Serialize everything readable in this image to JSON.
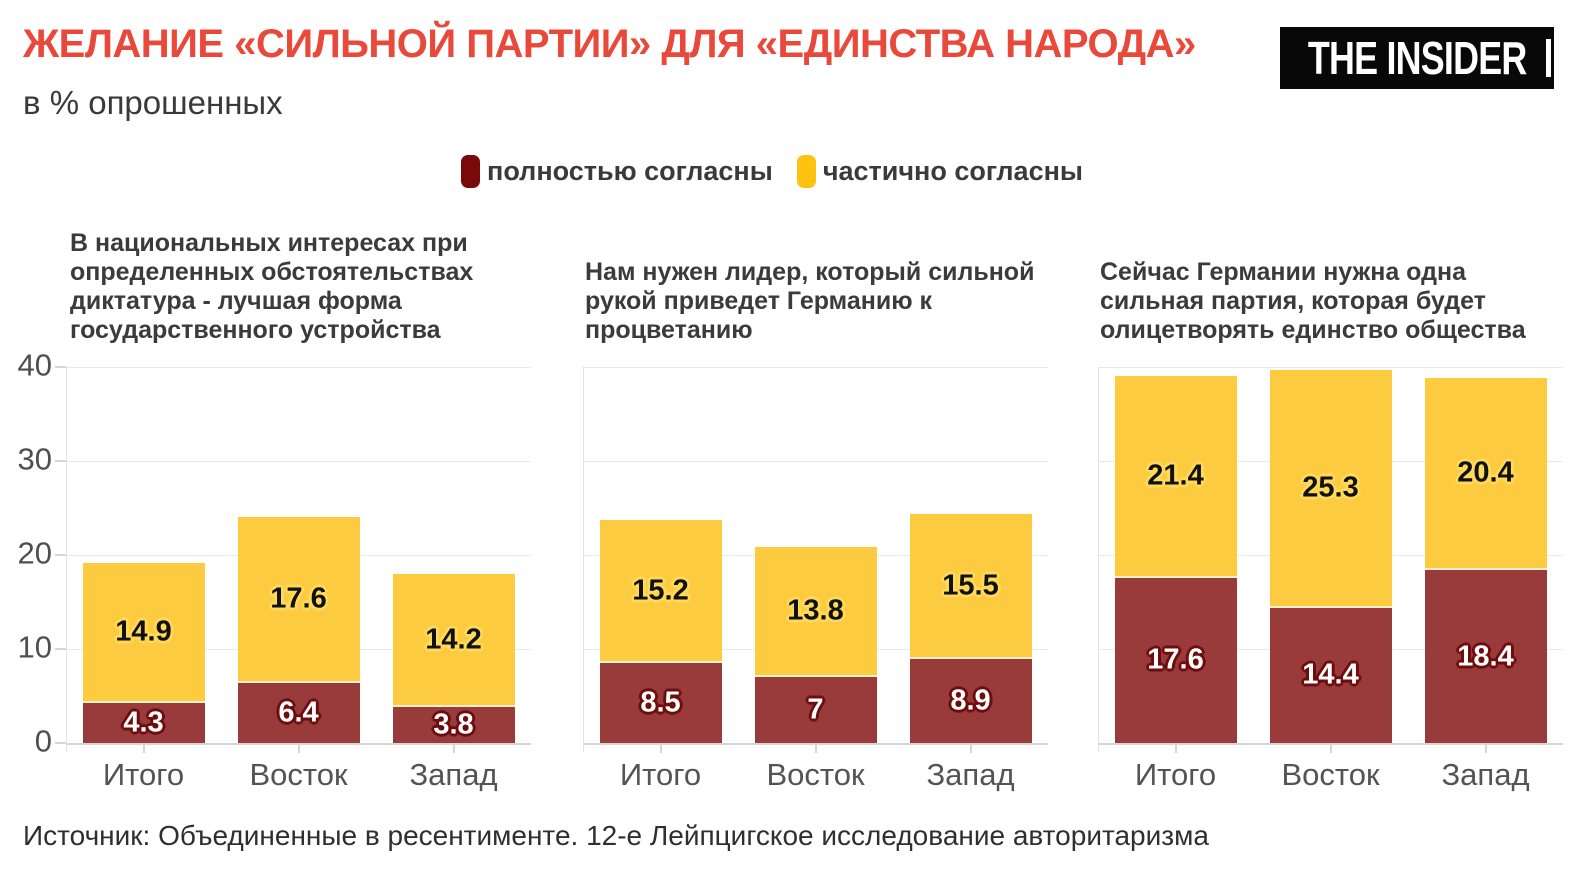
{
  "header": {
    "title": "ЖЕЛАНИЕ «СИЛЬНОЙ ПАРТИИ» ДЛЯ «ЕДИНСТВА НАРОДА»",
    "subtitle": "в % опрошенных",
    "logo": "THE INSIDER"
  },
  "colors": {
    "title_red": "#E8493B",
    "bar_dark_red": "#9A3B3B",
    "bar_yellow": "#FCCB3F",
    "legend_dark_red": "#7A0A0A",
    "legend_yellow": "#FFC20E",
    "gridline": "#E9E9E9"
  },
  "legend": {
    "items": [
      {
        "label": "полностью согласны",
        "color": "#7A0A0A"
      },
      {
        "label": "частично согласны",
        "color": "#FFC20E"
      }
    ]
  },
  "chart_data": [
    {
      "type": "bar",
      "stacked": true,
      "title": "В национальных интересах при\nопределенных обстоятельствах\nдиктатура - лучшая форма\nгосударственного устройства",
      "categories": [
        "Итого",
        "Восток",
        "Запад"
      ],
      "series": [
        {
          "name": "полностью согласны",
          "values": [
            4.3,
            6.4,
            3.8
          ],
          "color": "#9A3B3B",
          "label_color": "#FFFFFF",
          "label_halo": "#6E0D0D"
        },
        {
          "name": "частично согласны",
          "values": [
            14.9,
            17.6,
            14.2
          ],
          "color": "#FCCB3F",
          "label_color": "#111111",
          "label_halo": "#FFD95A"
        }
      ],
      "ylim": [
        0,
        40
      ],
      "yticks": [
        0,
        10,
        20,
        30,
        40
      ],
      "y_axis_labels": true,
      "grid": true,
      "legend_position": "top"
    },
    {
      "type": "bar",
      "stacked": true,
      "title": "Нам нужен лидер, который сильной\nрукой приведет Германию к\nпроцветанию",
      "categories": [
        "Итого",
        "Восток",
        "Запад"
      ],
      "series": [
        {
          "name": "полностью согласны",
          "values": [
            8.5,
            7,
            8.9
          ],
          "color": "#9A3B3B",
          "label_color": "#FFFFFF",
          "label_halo": "#6E0D0D"
        },
        {
          "name": "частично согласны",
          "values": [
            15.2,
            13.8,
            15.5
          ],
          "color": "#FCCB3F",
          "label_color": "#111111",
          "label_halo": "#FFD95A"
        }
      ],
      "ylim": [
        0,
        40
      ],
      "yticks": [
        0,
        10,
        20,
        30,
        40
      ],
      "y_axis_labels": false,
      "grid": true,
      "legend_position": "top"
    },
    {
      "type": "bar",
      "stacked": true,
      "title": "Сейчас Германии нужна одна\nсильная партия, которая будет\nолицетворять единство общества",
      "categories": [
        "Итого",
        "Восток",
        "Запад"
      ],
      "series": [
        {
          "name": "полностью согласны",
          "values": [
            17.6,
            14.4,
            18.4
          ],
          "color": "#9A3B3B",
          "label_color": "#FFFFFF",
          "label_halo": "#6E0D0D"
        },
        {
          "name": "частично согласны",
          "values": [
            21.4,
            25.3,
            20.4
          ],
          "color": "#FCCB3F",
          "label_color": "#111111",
          "label_halo": "#FFD95A"
        }
      ],
      "ylim": [
        0,
        40
      ],
      "yticks": [
        0,
        10,
        20,
        30,
        40
      ],
      "y_axis_labels": false,
      "grid": true,
      "legend_position": "top"
    }
  ],
  "source": "Источник: Объединенные в ресентименте. 12-е Лейпцигское исследование авторитаризма"
}
